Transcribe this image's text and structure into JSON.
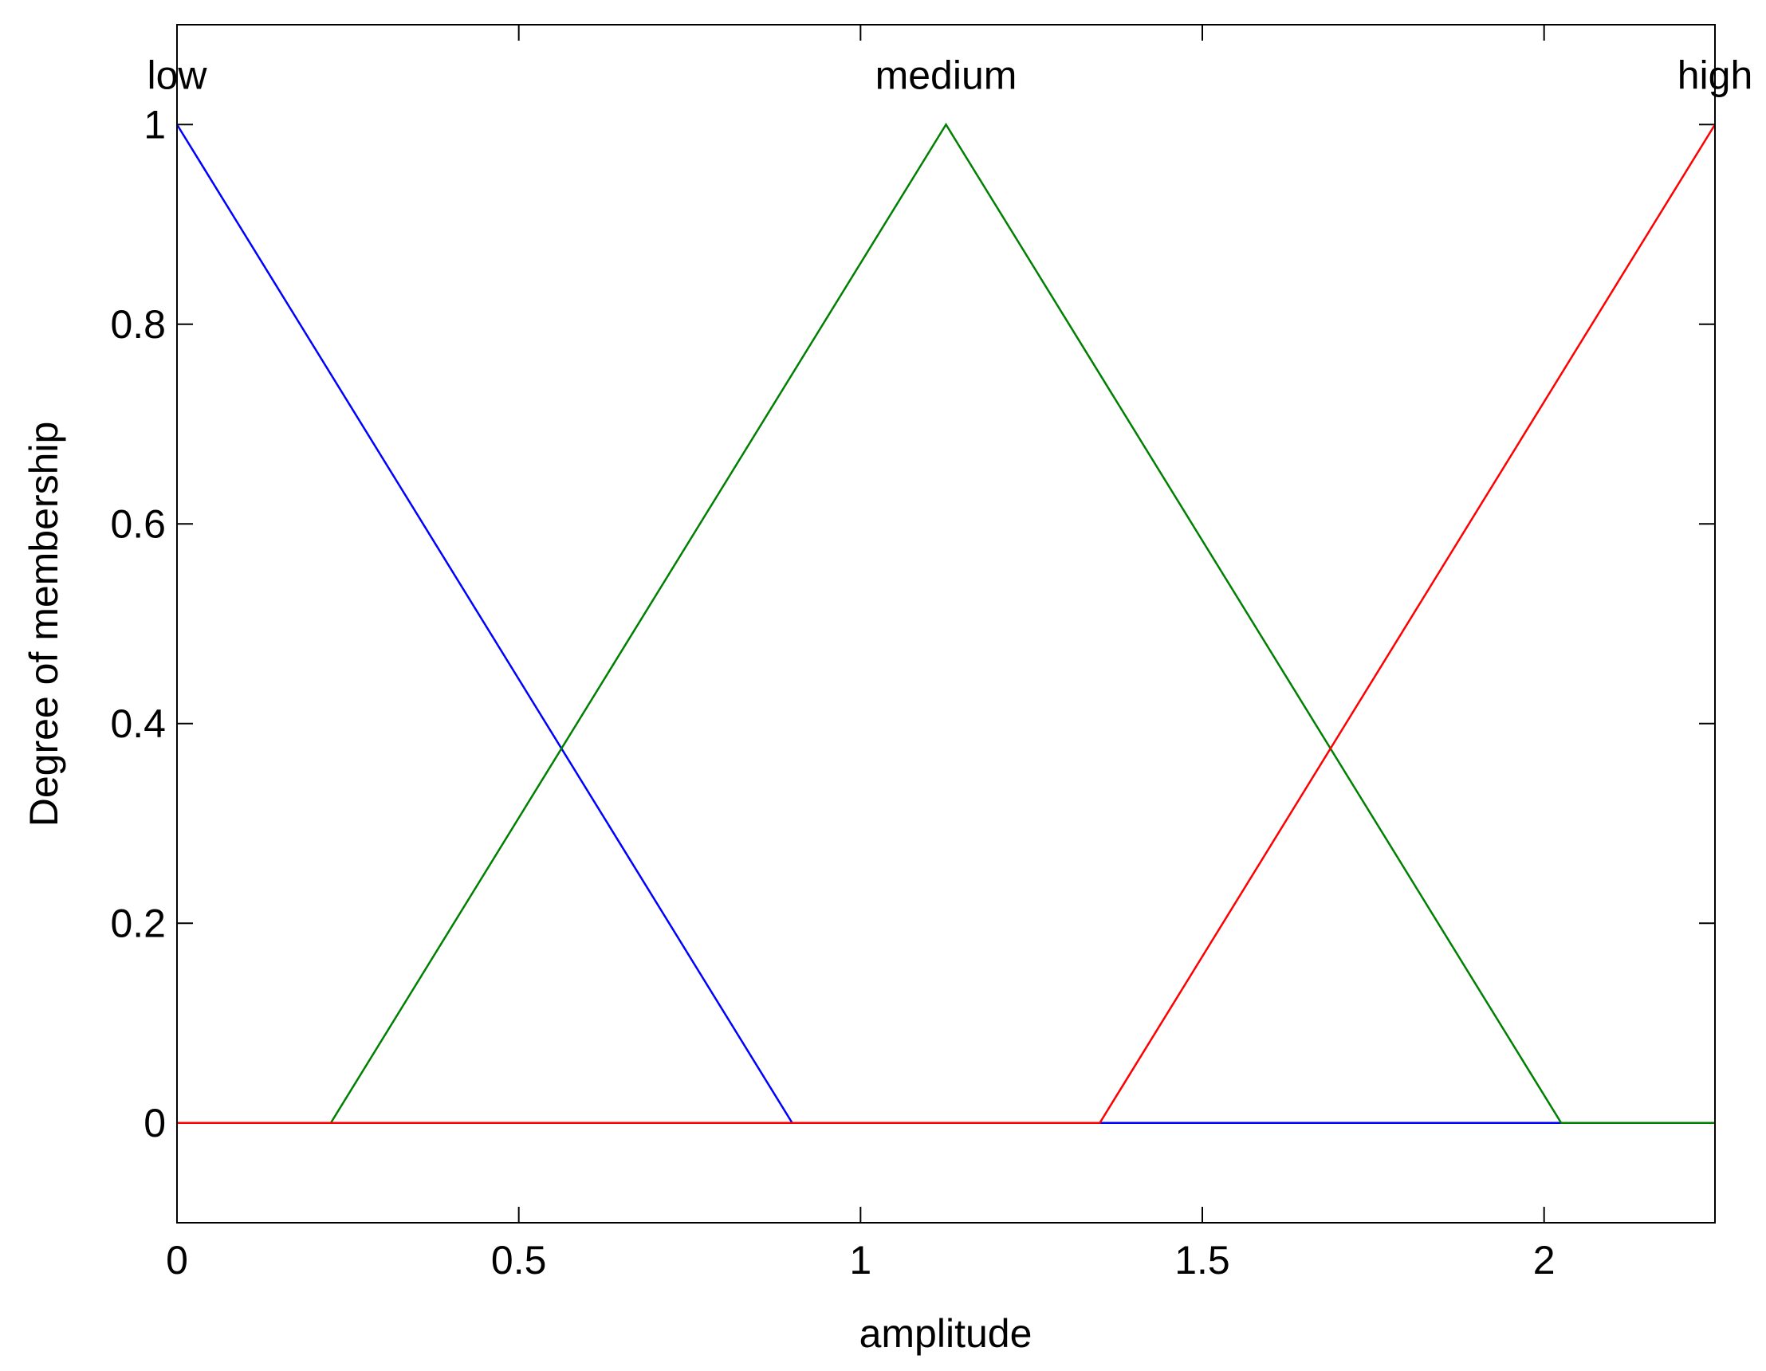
{
  "chart_data": {
    "type": "line",
    "xlabel": "amplitude",
    "ylabel": "Degree of membership",
    "xlim": [
      0,
      2.25
    ],
    "ylim": [
      -0.1,
      1.1
    ],
    "xticks": [
      0,
      0.5,
      1,
      1.5,
      2
    ],
    "yticks": [
      0,
      0.2,
      0.4,
      0.6,
      0.8,
      1
    ],
    "grid": false,
    "series": [
      {
        "name": "low",
        "color": "#0000ff",
        "x": [
          0,
          0.9,
          2.25
        ],
        "values": [
          1,
          0,
          0
        ]
      },
      {
        "name": "medium",
        "color": "#008000",
        "x": [
          0,
          0.225,
          1.125,
          2.025,
          2.25
        ],
        "values": [
          0,
          0,
          1,
          0,
          0
        ]
      },
      {
        "name": "high",
        "color": "#ff0000",
        "x": [
          0,
          1.35,
          2.25
        ],
        "values": [
          0,
          0,
          1
        ]
      }
    ]
  }
}
